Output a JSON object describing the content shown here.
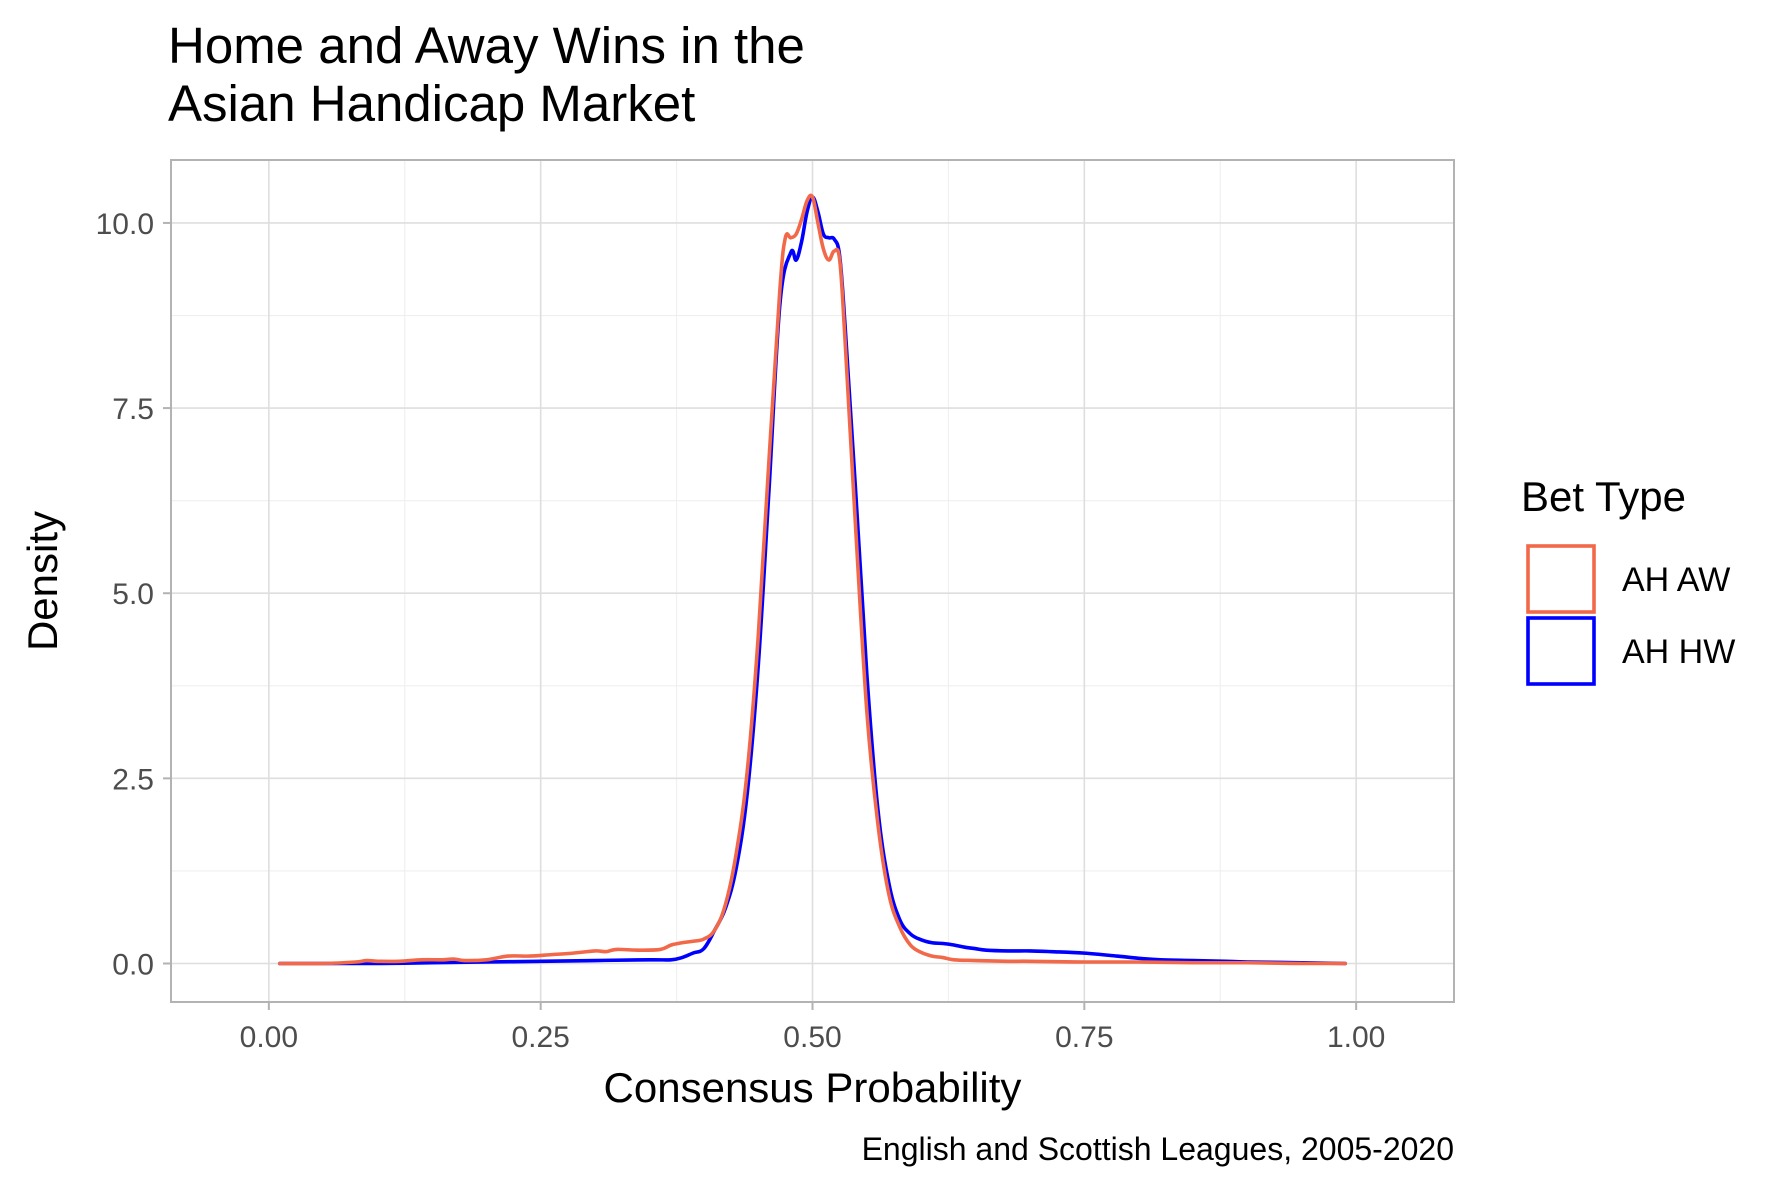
{
  "chart_data": {
    "type": "line",
    "subtype": "density",
    "title_lines": [
      "Home and Away Wins in the",
      "Asian Handicap Market"
    ],
    "xlabel": "Consensus Probability",
    "ylabel": "Density",
    "caption": "English and Scottish Leagues, 2005-2020",
    "xlim": [
      -0.09,
      1.09
    ],
    "ylim": [
      -0.52,
      10.85
    ],
    "x_ticks": [
      0.0,
      0.25,
      0.5,
      0.75,
      1.0
    ],
    "x_tick_labels": [
      "0.00",
      "0.25",
      "0.50",
      "0.75",
      "1.00"
    ],
    "y_ticks": [
      0.0,
      2.5,
      5.0,
      7.5,
      10.0
    ],
    "y_tick_labels": [
      "0.0",
      "2.5",
      "5.0",
      "7.5",
      "10.0"
    ],
    "x_minor_ticks": [
      0.125,
      0.375,
      0.625,
      0.875
    ],
    "y_minor_ticks": [
      1.25,
      3.75,
      6.25,
      8.75
    ],
    "grid": true,
    "legend": {
      "title": "Bet Type",
      "position": "right"
    },
    "series": [
      {
        "name": "AH AW",
        "color": "#F2694A",
        "x": [
          0.01,
          0.05,
          0.08,
          0.09,
          0.1,
          0.12,
          0.14,
          0.16,
          0.17,
          0.18,
          0.2,
          0.22,
          0.24,
          0.26,
          0.28,
          0.3,
          0.31,
          0.32,
          0.34,
          0.36,
          0.37,
          0.38,
          0.39,
          0.4,
          0.41,
          0.42,
          0.43,
          0.44,
          0.45,
          0.46,
          0.47,
          0.475,
          0.48,
          0.485,
          0.49,
          0.495,
          0.5,
          0.505,
          0.51,
          0.515,
          0.52,
          0.525,
          0.53,
          0.54,
          0.55,
          0.56,
          0.57,
          0.58,
          0.59,
          0.6,
          0.61,
          0.62,
          0.63,
          0.65,
          0.68,
          0.7,
          0.75,
          0.8,
          0.85,
          0.9,
          0.95,
          0.99
        ],
        "y": [
          0.0,
          0.0,
          0.02,
          0.04,
          0.03,
          0.03,
          0.05,
          0.05,
          0.06,
          0.04,
          0.05,
          0.1,
          0.1,
          0.12,
          0.14,
          0.17,
          0.16,
          0.19,
          0.18,
          0.19,
          0.25,
          0.28,
          0.3,
          0.33,
          0.45,
          0.8,
          1.5,
          2.6,
          4.4,
          6.8,
          9.1,
          9.8,
          9.8,
          9.85,
          10.05,
          10.3,
          10.35,
          10.0,
          9.65,
          9.5,
          9.62,
          9.5,
          8.4,
          5.8,
          3.4,
          1.9,
          0.95,
          0.5,
          0.25,
          0.15,
          0.1,
          0.08,
          0.05,
          0.04,
          0.03,
          0.03,
          0.02,
          0.02,
          0.01,
          0.01,
          0.0,
          0.0
        ]
      },
      {
        "name": "AH HW",
        "color": "#0000FF",
        "x": [
          0.01,
          0.05,
          0.1,
          0.15,
          0.2,
          0.25,
          0.3,
          0.35,
          0.37,
          0.38,
          0.39,
          0.4,
          0.41,
          0.42,
          0.43,
          0.44,
          0.45,
          0.46,
          0.47,
          0.48,
          0.485,
          0.49,
          0.495,
          0.5,
          0.505,
          0.51,
          0.515,
          0.52,
          0.525,
          0.53,
          0.54,
          0.55,
          0.56,
          0.57,
          0.58,
          0.59,
          0.6,
          0.61,
          0.62,
          0.63,
          0.64,
          0.65,
          0.66,
          0.68,
          0.7,
          0.72,
          0.75,
          0.78,
          0.8,
          0.82,
          0.85,
          0.88,
          0.9,
          0.95,
          0.99
        ],
        "y": [
          0.0,
          0.0,
          0.0,
          0.01,
          0.02,
          0.03,
          0.04,
          0.05,
          0.05,
          0.08,
          0.14,
          0.2,
          0.45,
          0.75,
          1.3,
          2.3,
          4.0,
          6.4,
          8.9,
          9.6,
          9.5,
          9.75,
          10.15,
          10.35,
          10.15,
          9.85,
          9.8,
          9.78,
          9.55,
          8.6,
          6.3,
          3.9,
          2.1,
          1.1,
          0.6,
          0.4,
          0.32,
          0.28,
          0.27,
          0.25,
          0.22,
          0.2,
          0.18,
          0.17,
          0.17,
          0.16,
          0.14,
          0.1,
          0.07,
          0.05,
          0.04,
          0.03,
          0.02,
          0.01,
          0.0
        ]
      }
    ]
  }
}
